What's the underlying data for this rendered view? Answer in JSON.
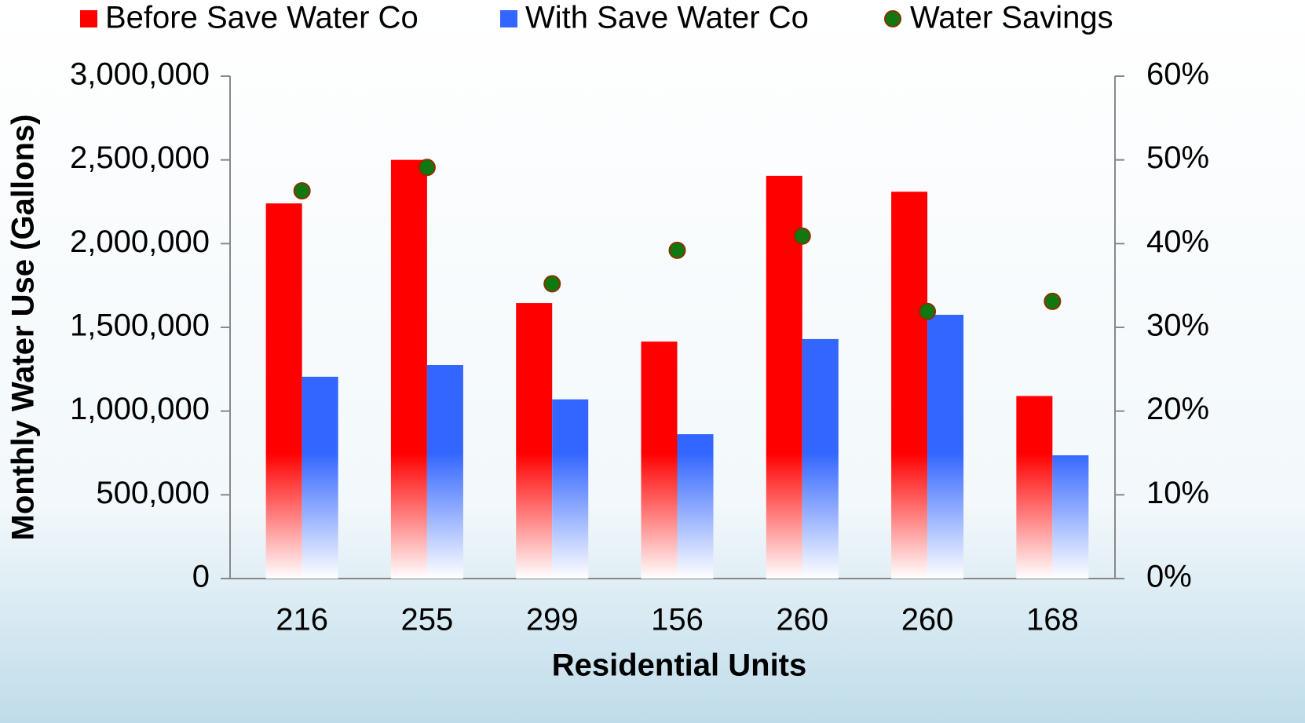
{
  "chart_data": {
    "type": "bar",
    "xlabel": "Residential Units",
    "ylabel": "Monthly Water Use (Gallons)",
    "categories": [
      "216",
      "255",
      "299",
      "156",
      "260",
      "260",
      "168"
    ],
    "series": [
      {
        "name": "Before Save Water Co",
        "color": "#ff0000",
        "values": [
          2240000,
          2500000,
          1645000,
          1415000,
          2405000,
          2310000,
          1090000
        ]
      },
      {
        "name": "With Save Water Co",
        "color": "#3366ff",
        "values": [
          1205000,
          1275000,
          1070000,
          862000,
          1430000,
          1575000,
          736000
        ]
      },
      {
        "name": "Water Savings",
        "type": "scatter",
        "axis": "y2",
        "color": "#117711",
        "values": [
          46.3,
          49.1,
          35.2,
          39.2,
          40.9,
          31.9,
          33.1
        ]
      }
    ],
    "ylim": [
      0,
      3000000
    ],
    "yticks": [
      0,
      {
        "value": 500000,
        "label": "500,000"
      },
      {
        "value": 1000000,
        "label": "1,000,000"
      },
      {
        "value": 1500000,
        "label": "1,500,000"
      },
      {
        "value": 2000000,
        "label": "2,000,000"
      },
      {
        "value": 2500000,
        "label": "2,500,000"
      },
      {
        "value": 3000000,
        "label": "3,000,000"
      }
    ],
    "y2lim": [
      0,
      60
    ],
    "y2ticks": [
      {
        "value": 0,
        "label": "0%"
      },
      {
        "value": 10,
        "label": "10%"
      },
      {
        "value": 20,
        "label": "20%"
      },
      {
        "value": 30,
        "label": "30%"
      },
      {
        "value": 40,
        "label": "40%"
      },
      {
        "value": 50,
        "label": "50%"
      },
      {
        "value": 60,
        "label": "60%"
      }
    ],
    "legend": "top"
  }
}
